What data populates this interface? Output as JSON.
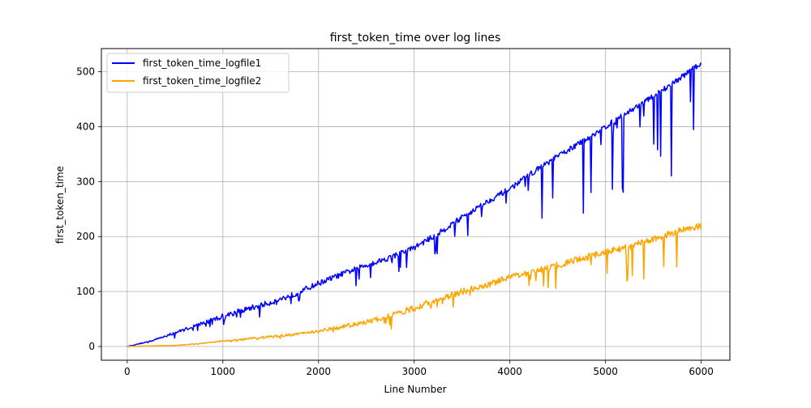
{
  "chart_data": {
    "type": "line",
    "title": "first_token_time over log lines",
    "xlabel": "Line Number",
    "ylabel": "first_token_time",
    "xlim": [
      -270,
      6300
    ],
    "ylim": [
      -25,
      542
    ],
    "xticks": [
      0,
      1000,
      2000,
      3000,
      4000,
      5000,
      6000
    ],
    "yticks": [
      0,
      100,
      200,
      300,
      400,
      500
    ],
    "grid": true,
    "legend_position": "upper-left",
    "series": [
      {
        "name": "first_token_time_logfile1",
        "color": "#0000ff",
        "points": [
          [
            0,
            0
          ],
          [
            250,
            10
          ],
          [
            500,
            25
          ],
          [
            750,
            40
          ],
          [
            1000,
            55
          ],
          [
            1250,
            68
          ],
          [
            1500,
            80
          ],
          [
            1750,
            95
          ],
          [
            2000,
            115
          ],
          [
            2250,
            132
          ],
          [
            2500,
            148
          ],
          [
            2750,
            162
          ],
          [
            3000,
            180
          ],
          [
            3250,
            205
          ],
          [
            3500,
            235
          ],
          [
            3750,
            262
          ],
          [
            4000,
            287
          ],
          [
            4250,
            318
          ],
          [
            4500,
            346
          ],
          [
            4750,
            372
          ],
          [
            5000,
            400
          ],
          [
            5250,
            428
          ],
          [
            5500,
            455
          ],
          [
            5750,
            485
          ],
          [
            6000,
            515
          ]
        ],
        "noise": 10
      },
      {
        "name": "first_token_time_logfile2",
        "color": "#ffa500",
        "points": [
          [
            0,
            0
          ],
          [
            500,
            2
          ],
          [
            750,
            5
          ],
          [
            1000,
            10
          ],
          [
            1250,
            14
          ],
          [
            1500,
            18
          ],
          [
            1750,
            22
          ],
          [
            2000,
            28
          ],
          [
            2250,
            36
          ],
          [
            2500,
            44
          ],
          [
            2750,
            55
          ],
          [
            3000,
            70
          ],
          [
            3250,
            85
          ],
          [
            3500,
            100
          ],
          [
            3750,
            112
          ],
          [
            4000,
            125
          ],
          [
            4250,
            137
          ],
          [
            4500,
            148
          ],
          [
            4750,
            160
          ],
          [
            5000,
            172
          ],
          [
            5250,
            182
          ],
          [
            5500,
            195
          ],
          [
            5750,
            210
          ],
          [
            6000,
            220
          ]
        ],
        "noise": 12
      }
    ]
  }
}
